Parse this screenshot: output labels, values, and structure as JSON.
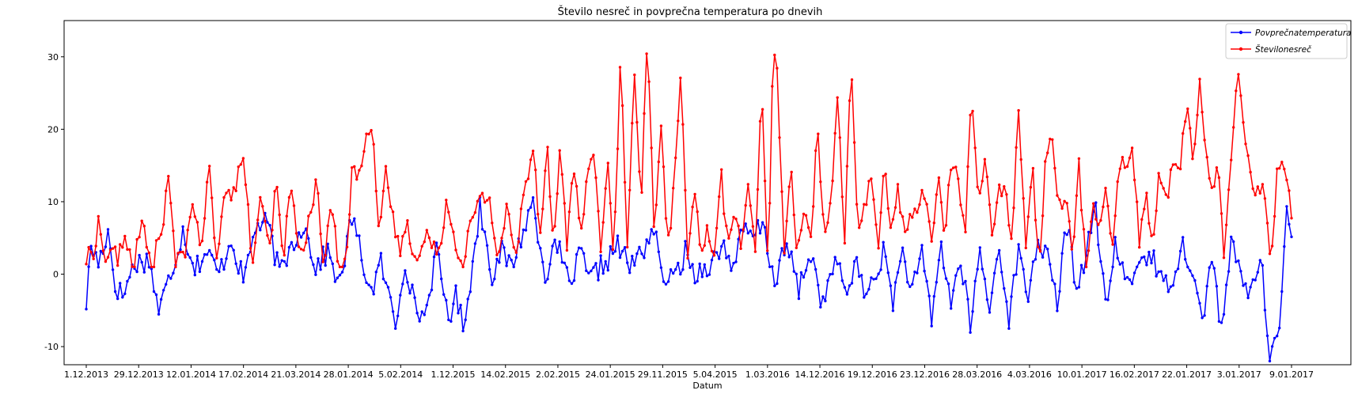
{
  "chart_data": {
    "type": "line",
    "title": "Število nesreč in povprečna temperatura po dnevih",
    "xlabel": "Datum",
    "ylabel": "",
    "ylim": [
      -12.5,
      35
    ],
    "yticks": [
      -10,
      0,
      10,
      20,
      30
    ],
    "xtick_labels": [
      "1.12.2013",
      "29.12.2013",
      "12.01.2014",
      "17.02.2014",
      "21.03.2014",
      "28.01.2014",
      "5.02.2014",
      "1.12.2015",
      "14.02.2015",
      "2.02.2015",
      "24.01.2015",
      "29.11.2015",
      "5.04.2015",
      "1.03.2016",
      "14.12.2016",
      "19.12.2016",
      "23.12.2016",
      "28.03.2016",
      "4.03.2016",
      "10.01.2017",
      "16.02.2017",
      "22.01.2017",
      "3.01.2017",
      "9.01.2017"
    ],
    "legend_position": "top-right",
    "grid": false,
    "point_count": 500,
    "series": [
      {
        "name": "Povprečnatemperatura",
        "color": "#0000ff",
        "keypoints": [
          [
            0,
            -4
          ],
          [
            2,
            4
          ],
          [
            5,
            1.5
          ],
          [
            9,
            6
          ],
          [
            12,
            -1.5
          ],
          [
            15,
            -3
          ],
          [
            20,
            1.5
          ],
          [
            26,
            2
          ],
          [
            30,
            -5
          ],
          [
            35,
            0
          ],
          [
            40,
            6
          ],
          [
            45,
            1
          ],
          [
            50,
            3
          ],
          [
            55,
            0
          ],
          [
            60,
            5
          ],
          [
            65,
            -1
          ],
          [
            70,
            6.5
          ],
          [
            75,
            7
          ],
          [
            80,
            0
          ],
          [
            85,
            4
          ],
          [
            90,
            7
          ],
          [
            95,
            1
          ],
          [
            100,
            3
          ],
          [
            105,
            -1.5
          ],
          [
            110,
            8
          ],
          [
            115,
            1
          ],
          [
            118,
            -2.5
          ],
          [
            122,
            1.5
          ],
          [
            126,
            -4
          ],
          [
            128,
            -7
          ],
          [
            132,
            2
          ],
          [
            136,
            -4.5
          ],
          [
            140,
            -6
          ],
          [
            145,
            3
          ],
          [
            150,
            -6
          ],
          [
            153,
            -3
          ],
          [
            156,
            -7
          ],
          [
            160,
            1
          ],
          [
            163,
            9.5
          ],
          [
            168,
            0
          ],
          [
            172,
            3
          ],
          [
            176,
            1
          ],
          [
            180,
            5
          ],
          [
            185,
            10
          ],
          [
            190,
            0
          ],
          [
            195,
            4
          ],
          [
            200,
            -1.5
          ],
          [
            205,
            3
          ],
          [
            208,
            -1
          ],
          [
            213,
            1
          ],
          [
            216,
            2
          ],
          [
            220,
            4
          ],
          [
            225,
            1
          ],
          [
            230,
            3
          ],
          [
            235,
            6.5
          ],
          [
            238,
            0
          ],
          [
            243,
            -1
          ],
          [
            248,
            3
          ],
          [
            252,
            0
          ],
          [
            256,
            1
          ],
          [
            260,
            2
          ],
          [
            264,
            4
          ],
          [
            268,
            1
          ],
          [
            272,
            6
          ],
          [
            276,
            5
          ],
          [
            280,
            7
          ],
          [
            285,
            -1
          ],
          [
            290,
            4
          ],
          [
            295,
            -2
          ],
          [
            300,
            3
          ],
          [
            305,
            -4.5
          ],
          [
            310,
            2
          ],
          [
            315,
            -3
          ],
          [
            318,
            2
          ],
          [
            322,
            -2.5
          ],
          [
            326,
            -1
          ],
          [
            330,
            3
          ],
          [
            334,
            -3.5
          ],
          [
            338,
            3
          ],
          [
            342,
            -2.5
          ],
          [
            346,
            2.5
          ],
          [
            350,
            -6
          ],
          [
            354,
            4
          ],
          [
            358,
            -4
          ],
          [
            362,
            2
          ],
          [
            366,
            -7
          ],
          [
            370,
            3
          ],
          [
            374,
            -5
          ],
          [
            378,
            4
          ],
          [
            382,
            -6
          ],
          [
            386,
            3
          ],
          [
            390,
            -3
          ],
          [
            394,
            5
          ],
          [
            398,
            2
          ],
          [
            402,
            -4
          ],
          [
            406,
            7
          ],
          [
            410,
            -2
          ],
          [
            414,
            3
          ],
          [
            418,
            9
          ],
          [
            422,
            -5
          ],
          [
            426,
            4
          ],
          [
            430,
            -1
          ],
          [
            434,
            0
          ],
          [
            438,
            3
          ],
          [
            442,
            2
          ],
          [
            446,
            -2
          ],
          [
            450,
            0
          ],
          [
            454,
            4
          ],
          [
            458,
            1
          ],
          [
            462,
            -7
          ],
          [
            466,
            3
          ],
          [
            470,
            -8
          ],
          [
            474,
            4
          ],
          [
            478,
            0
          ],
          [
            482,
            -3
          ],
          [
            486,
            3
          ],
          [
            490,
            -10.5
          ],
          [
            494,
            -8
          ],
          [
            497,
            8
          ],
          [
            499,
            5
          ]
        ]
      },
      {
        "name": "Številonesreč",
        "color": "#ff0000",
        "keypoints": [
          [
            0,
            2
          ],
          [
            3,
            3
          ],
          [
            6,
            8
          ],
          [
            8,
            1
          ],
          [
            11,
            4
          ],
          [
            14,
            2
          ],
          [
            18,
            5
          ],
          [
            21,
            1
          ],
          [
            25,
            7
          ],
          [
            29,
            1
          ],
          [
            33,
            5
          ],
          [
            37,
            13
          ],
          [
            40,
            1
          ],
          [
            44,
            3
          ],
          [
            48,
            11
          ],
          [
            51,
            2
          ],
          [
            55,
            15
          ],
          [
            58,
            1
          ],
          [
            62,
            13
          ],
          [
            65,
            10
          ],
          [
            68,
            14
          ],
          [
            71,
            15
          ],
          [
            74,
            1
          ],
          [
            78,
            10
          ],
          [
            82,
            3
          ],
          [
            85,
            13
          ],
          [
            88,
            1
          ],
          [
            91,
            13
          ],
          [
            95,
            3
          ],
          [
            99,
            6
          ],
          [
            103,
            13
          ],
          [
            106,
            1
          ],
          [
            110,
            10
          ],
          [
            113,
            1
          ],
          [
            116,
            1
          ],
          [
            119,
            15
          ],
          [
            122,
            13
          ],
          [
            125,
            20
          ],
          [
            128,
            21
          ],
          [
            131,
            4
          ],
          [
            134,
            14
          ],
          [
            137,
            8
          ],
          [
            140,
            3
          ],
          [
            143,
            7
          ],
          [
            146,
            4
          ],
          [
            149,
            2
          ],
          [
            152,
            6
          ],
          [
            155,
            3
          ],
          [
            158,
            4
          ],
          [
            161,
            10
          ],
          [
            165,
            5
          ],
          [
            168,
            1
          ],
          [
            172,
            7
          ],
          [
            176,
            10
          ],
          [
            180,
            11
          ],
          [
            184,
            2
          ],
          [
            188,
            9
          ],
          [
            192,
            2
          ],
          [
            196,
            12
          ],
          [
            200,
            18
          ],
          [
            203,
            5
          ],
          [
            206,
            19
          ],
          [
            209,
            3
          ],
          [
            212,
            18
          ],
          [
            215,
            4
          ],
          [
            218,
            16
          ],
          [
            221,
            4
          ],
          [
            224,
            14
          ],
          [
            227,
            18
          ],
          [
            230,
            2
          ],
          [
            233,
            16
          ],
          [
            236,
            2
          ],
          [
            239,
            31
          ],
          [
            242,
            2
          ],
          [
            245,
            28
          ],
          [
            248,
            9
          ],
          [
            251,
            33
          ],
          [
            254,
            5
          ],
          [
            257,
            22
          ],
          [
            260,
            3
          ],
          [
            263,
            13
          ],
          [
            266,
            27
          ],
          [
            269,
            3
          ],
          [
            272,
            13
          ],
          [
            275,
            2
          ],
          [
            278,
            6
          ],
          [
            281,
            3
          ],
          [
            284,
            14
          ],
          [
            287,
            3
          ],
          [
            290,
            9
          ],
          [
            293,
            4
          ],
          [
            296,
            13
          ],
          [
            299,
            2
          ],
          [
            302,
            25
          ],
          [
            305,
            1
          ],
          [
            307,
            30
          ],
          [
            309,
            29
          ],
          [
            312,
            2
          ],
          [
            315,
            15
          ],
          [
            318,
            3
          ],
          [
            321,
            10
          ],
          [
            324,
            4
          ],
          [
            327,
            20
          ],
          [
            330,
            4
          ],
          [
            333,
            9
          ],
          [
            336,
            26
          ],
          [
            339,
            4
          ],
          [
            342,
            29
          ],
          [
            345,
            7
          ],
          [
            348,
            9
          ],
          [
            351,
            13
          ],
          [
            354,
            4
          ],
          [
            357,
            14
          ],
          [
            360,
            7
          ],
          [
            363,
            12
          ],
          [
            366,
            5
          ],
          [
            369,
            8
          ],
          [
            372,
            9
          ],
          [
            375,
            12
          ],
          [
            378,
            4
          ],
          [
            381,
            13
          ],
          [
            384,
            5
          ],
          [
            387,
            16
          ],
          [
            390,
            14
          ],
          [
            393,
            5
          ],
          [
            396,
            26
          ],
          [
            399,
            9
          ],
          [
            402,
            17
          ],
          [
            405,
            4
          ],
          [
            408,
            11
          ],
          [
            411,
            13
          ],
          [
            414,
            4
          ],
          [
            417,
            24
          ],
          [
            420,
            4
          ],
          [
            423,
            16
          ],
          [
            426,
            1
          ],
          [
            429,
            15
          ],
          [
            432,
            20
          ],
          [
            435,
            9
          ],
          [
            438,
            12
          ],
          [
            441,
            2
          ],
          [
            444,
            15
          ],
          [
            447,
            1
          ],
          [
            450,
            9
          ],
          [
            453,
            8
          ],
          [
            456,
            11
          ],
          [
            459,
            5
          ],
          [
            462,
            15
          ],
          [
            465,
            16
          ],
          [
            468,
            17
          ],
          [
            471,
            4
          ],
          [
            474,
            11
          ],
          [
            477,
            4
          ],
          [
            480,
            14
          ],
          [
            483,
            10
          ],
          [
            486,
            16
          ],
          [
            489,
            13
          ],
          [
            492,
            24
          ],
          [
            495,
            16
          ],
          [
            498,
            27
          ],
          [
            500,
            18
          ],
          [
            503,
            12
          ],
          [
            506,
            15
          ],
          [
            509,
            2
          ],
          [
            512,
            17
          ],
          [
            515,
            27
          ],
          [
            518,
            20
          ],
          [
            521,
            12
          ],
          [
            524,
            12
          ],
          [
            527,
            12
          ],
          [
            530,
            1
          ],
          [
            533,
            16
          ],
          [
            536,
            15
          ],
          [
            539,
            8
          ]
        ]
      }
    ]
  }
}
